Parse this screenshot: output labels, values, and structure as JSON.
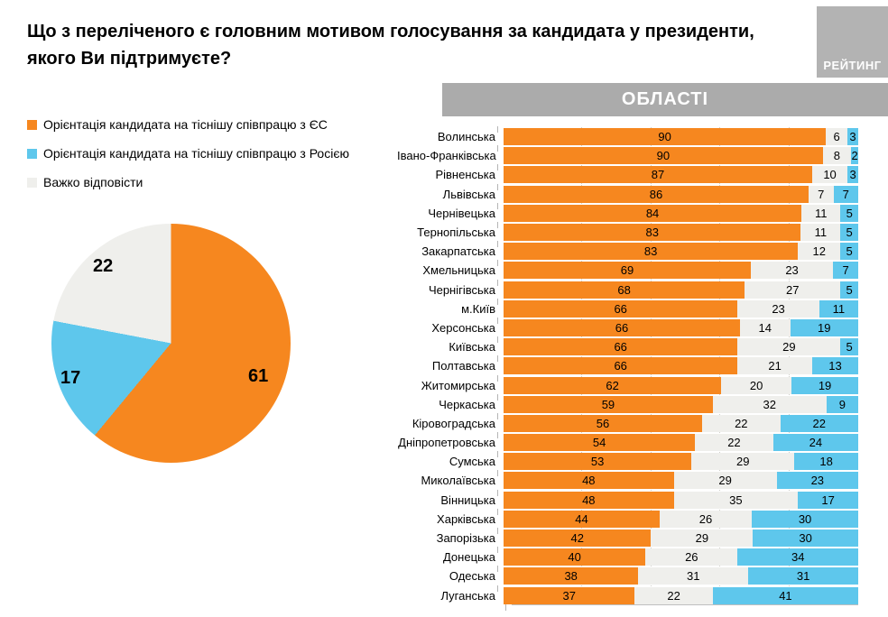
{
  "header": {
    "title_lines": [
      "Що з переліченого є головним мотивом голосування за кандидата у президенти,",
      "якого Ви підтримуєте?"
    ],
    "logo": "РЕЙТИНГ"
  },
  "legend": {
    "items": [
      {
        "key": "eu",
        "label": "Орієнтація кандидата на тіснішу співпрацю з ЄС",
        "color": "#f6871f"
      },
      {
        "key": "ru",
        "label": "Орієнтація кандидата на тіснішу співпрацю з Росією",
        "color": "#5ec7ec"
      },
      {
        "key": "dk",
        "label": "Важко відповісти",
        "color": "#efefec"
      }
    ]
  },
  "panel": {
    "header": "ОБЛАСТІ",
    "header_bg": "#ababab"
  },
  "colors": {
    "eu": "#f6871f",
    "ru": "#5ec7ec",
    "dk": "#efefec",
    "header_gray": "#ababab",
    "logo_gray": "#b3b3b3"
  },
  "chart_data": [
    {
      "type": "pie",
      "labels": [
        "Орієнтація кандидата на тіснішу співпрацю з ЄС",
        "Орієнтація кандидата на тіснішу співпрацю з Росією",
        "Важко відповісти"
      ],
      "values": [
        61,
        17,
        22
      ],
      "colors": [
        "#f6871f",
        "#5ec7ec",
        "#efefec"
      ],
      "start_angle": "top",
      "direction": "clockwise",
      "label_position": "inside"
    },
    {
      "type": "bar",
      "orientation": "horizontal",
      "stacked": true,
      "normalized_percent": true,
      "title": "ОБЛАСТІ",
      "segment_order_left_to_right": [
        "ЄС",
        "Важко відповісти",
        "Росія"
      ],
      "xlim": [
        0,
        100
      ],
      "gridlines_percent": [
        20,
        40,
        60,
        80
      ],
      "categories": [
        "Волинська",
        "Івано-Франківська",
        "Рівненська",
        "Львівська",
        "Чернівецька",
        "Тернопільська",
        "Закарпатська",
        "Хмельницька",
        "Чернігівська",
        "м.Київ",
        "Херсонська",
        "Київська",
        "Полтавська",
        "Житомирська",
        "Черкаська",
        "Кіровоградська",
        "Дніпропетровська",
        "Сумська",
        "Миколаївська",
        "Вінницька",
        "Харківська",
        "Запорізька",
        "Донецька",
        "Одеська",
        "Луганська"
      ],
      "series": [
        {
          "name": "Орієнтація кандидата на тіснішу співпрацю з ЄС",
          "color": "#f6871f",
          "values": [
            90,
            90,
            87,
            86,
            84,
            83,
            83,
            69,
            68,
            66,
            66,
            66,
            66,
            62,
            59,
            56,
            54,
            53,
            48,
            48,
            44,
            42,
            40,
            38,
            37
          ]
        },
        {
          "name": "Важко відповісти",
          "color": "#efefec",
          "values": [
            6,
            8,
            10,
            7,
            11,
            11,
            12,
            23,
            27,
            23,
            14,
            29,
            21,
            20,
            32,
            22,
            22,
            29,
            29,
            35,
            26,
            29,
            26,
            31,
            22
          ]
        },
        {
          "name": "Орієнтація кандидата на тіснішу співпрацю з Росією",
          "color": "#5ec7ec",
          "values": [
            3,
            2,
            3,
            7,
            5,
            5,
            5,
            7,
            5,
            11,
            19,
            5,
            13,
            19,
            9,
            22,
            24,
            18,
            23,
            17,
            30,
            30,
            34,
            31,
            41
          ]
        }
      ]
    }
  ]
}
